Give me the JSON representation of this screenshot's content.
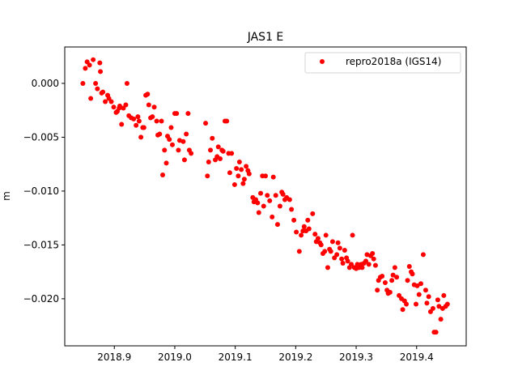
{
  "chart_data": {
    "type": "scatter",
    "title": "JAS1 E",
    "xlabel": "",
    "ylabel": "m",
    "xlim": [
      2018.818,
      2019.482
    ],
    "ylim": [
      -0.02437,
      0.00338
    ],
    "xticks": [
      2018.9,
      2019.0,
      2019.1,
      2019.2,
      2019.3,
      2019.4
    ],
    "xtick_labels": [
      "2018.9",
      "2019.0",
      "2019.1",
      "2019.2",
      "2019.3",
      "2019.4"
    ],
    "yticks": [
      0.0,
      -0.005,
      -0.01,
      -0.015,
      -0.02
    ],
    "ytick_labels": [
      "0.000",
      "−0.005",
      "−0.010",
      "−0.015",
      "−0.020"
    ],
    "grid": false,
    "legend_placement": "top-right",
    "series": [
      {
        "name": "repro2018a (IGS14)",
        "color": "#ff0000",
        "marker": "circle",
        "points": [
          [
            2018.848,
            0.0
          ],
          [
            2018.852,
            0.0014
          ],
          [
            2018.855,
            0.002
          ],
          [
            2018.859,
            0.0017
          ],
          [
            2018.861,
            -0.0014
          ],
          [
            2018.865,
            0.0022
          ],
          [
            2018.869,
            0.0
          ],
          [
            2018.872,
            -0.0005
          ],
          [
            2018.876,
            0.0019
          ],
          [
            2018.877,
            0.0011
          ],
          [
            2018.879,
            -0.0009
          ],
          [
            2018.881,
            -0.0008
          ],
          [
            2018.885,
            -0.0017
          ],
          [
            2018.889,
            -0.0011
          ],
          [
            2018.891,
            -0.0014
          ],
          [
            2018.895,
            -0.0017
          ],
          [
            2018.899,
            -0.0022
          ],
          [
            2018.903,
            -0.0027
          ],
          [
            2018.905,
            -0.0026
          ],
          [
            2018.908,
            -0.0023
          ],
          [
            2018.909,
            -0.0021
          ],
          [
            2018.912,
            -0.0038
          ],
          [
            2018.915,
            -0.0023
          ],
          [
            2018.919,
            -0.002
          ],
          [
            2018.921,
            0.0
          ],
          [
            2018.924,
            -0.003
          ],
          [
            2018.928,
            -0.0032
          ],
          [
            2018.932,
            -0.0033
          ],
          [
            2018.936,
            -0.0039
          ],
          [
            2018.939,
            -0.0031
          ],
          [
            2018.941,
            -0.0035
          ],
          [
            2018.944,
            -0.005
          ],
          [
            2018.947,
            -0.0041
          ],
          [
            2018.949,
            -0.0041
          ],
          [
            2018.952,
            -0.0011
          ],
          [
            2018.955,
            -0.001
          ],
          [
            2018.957,
            -0.002
          ],
          [
            2018.96,
            -0.0032
          ],
          [
            2018.963,
            -0.0031
          ],
          [
            2018.966,
            -0.0022
          ],
          [
            2018.97,
            -0.0035
          ],
          [
            2018.972,
            -0.0048
          ],
          [
            2018.975,
            -0.0047
          ],
          [
            2018.978,
            -0.0035
          ],
          [
            2018.98,
            -0.0085
          ],
          [
            2018.983,
            -0.0062
          ],
          [
            2018.986,
            -0.0074
          ],
          [
            2018.988,
            -0.0049
          ],
          [
            2018.991,
            -0.0052
          ],
          [
            2018.994,
            -0.0041
          ],
          [
            2018.996,
            -0.0057
          ],
          [
            2019.0,
            -0.0028
          ],
          [
            2019.003,
            -0.0028
          ],
          [
            2019.006,
            -0.0062
          ],
          [
            2019.008,
            -0.0053
          ],
          [
            2019.014,
            -0.0054
          ],
          [
            2019.016,
            -0.0071
          ],
          [
            2019.019,
            -0.0047
          ],
          [
            2019.022,
            -0.0028
          ],
          [
            2019.024,
            -0.0062
          ],
          [
            2019.027,
            -0.0065
          ],
          [
            2019.051,
            -0.0037
          ],
          [
            2019.054,
            -0.0086
          ],
          [
            2019.056,
            -0.0073
          ],
          [
            2019.059,
            -0.0062
          ],
          [
            2019.062,
            -0.0051
          ],
          [
            2019.067,
            -0.0071
          ],
          [
            2019.07,
            -0.0068
          ],
          [
            2019.072,
            -0.0059
          ],
          [
            2019.075,
            -0.007
          ],
          [
            2019.078,
            -0.0062
          ],
          [
            2019.08,
            -0.0063
          ],
          [
            2019.083,
            -0.0035
          ],
          [
            2019.086,
            -0.0035
          ],
          [
            2019.089,
            -0.0065
          ],
          [
            2019.091,
            -0.0083
          ],
          [
            2019.094,
            -0.0065
          ],
          [
            2019.099,
            -0.0094
          ],
          [
            2019.102,
            -0.0079
          ],
          [
            2019.105,
            -0.0086
          ],
          [
            2019.107,
            -0.0073
          ],
          [
            2019.11,
            -0.008
          ],
          [
            2019.113,
            -0.0093
          ],
          [
            2019.115,
            -0.0089
          ],
          [
            2019.118,
            -0.0077
          ],
          [
            2019.121,
            -0.0081
          ],
          [
            2019.123,
            -0.0084
          ],
          [
            2019.129,
            -0.0106
          ],
          [
            2019.131,
            -0.011
          ],
          [
            2019.134,
            -0.0108
          ],
          [
            2019.137,
            -0.0111
          ],
          [
            2019.139,
            -0.012
          ],
          [
            2019.142,
            -0.0102
          ],
          [
            2019.145,
            -0.0086
          ],
          [
            2019.147,
            -0.0114
          ],
          [
            2019.15,
            -0.0086
          ],
          [
            2019.153,
            -0.0104
          ],
          [
            2019.157,
            -0.0109
          ],
          [
            2019.161,
            -0.0124
          ],
          [
            2019.163,
            -0.0087
          ],
          [
            2019.167,
            -0.0104
          ],
          [
            2019.17,
            -0.0131
          ],
          [
            2019.174,
            -0.0114
          ],
          [
            2019.177,
            -0.0101
          ],
          [
            2019.179,
            -0.0103
          ],
          [
            2019.182,
            -0.0108
          ],
          [
            2019.185,
            -0.0106
          ],
          [
            2019.19,
            -0.0108
          ],
          [
            2019.193,
            -0.0117
          ],
          [
            2019.197,
            -0.0127
          ],
          [
            2019.201,
            -0.0138
          ],
          [
            2019.206,
            -0.0156
          ],
          [
            2019.209,
            -0.0141
          ],
          [
            2019.212,
            -0.0137
          ],
          [
            2019.214,
            -0.0133
          ],
          [
            2019.217,
            -0.0137
          ],
          [
            2019.22,
            -0.0127
          ],
          [
            2019.222,
            -0.0135
          ],
          [
            2019.228,
            -0.0121
          ],
          [
            2019.232,
            -0.014
          ],
          [
            2019.234,
            -0.0147
          ],
          [
            2019.237,
            -0.0144
          ],
          [
            2019.24,
            -0.0148
          ],
          [
            2019.242,
            -0.015
          ],
          [
            2019.245,
            -0.0158
          ],
          [
            2019.248,
            -0.0156
          ],
          [
            2019.25,
            -0.0141
          ],
          [
            2019.253,
            -0.0171
          ],
          [
            2019.256,
            -0.0154
          ],
          [
            2019.258,
            -0.0156
          ],
          [
            2019.261,
            -0.0147
          ],
          [
            2019.264,
            -0.0162
          ],
          [
            2019.268,
            -0.0159
          ],
          [
            2019.27,
            -0.0148
          ],
          [
            2019.273,
            -0.0153
          ],
          [
            2019.276,
            -0.0163
          ],
          [
            2019.278,
            -0.0167
          ],
          [
            2019.281,
            -0.0155
          ],
          [
            2019.284,
            -0.0162
          ],
          [
            2019.286,
            -0.0165
          ],
          [
            2019.289,
            -0.0171
          ],
          [
            2019.292,
            -0.0168
          ],
          [
            2019.294,
            -0.0141
          ],
          [
            2019.297,
            -0.0171
          ],
          [
            2019.3,
            -0.0172
          ],
          [
            2019.302,
            -0.0168
          ],
          [
            2019.305,
            -0.0171
          ],
          [
            2019.308,
            -0.0168
          ],
          [
            2019.31,
            -0.0171
          ],
          [
            2019.313,
            -0.0167
          ],
          [
            2019.316,
            -0.0165
          ],
          [
            2019.318,
            -0.0159
          ],
          [
            2019.321,
            -0.0168
          ],
          [
            2019.324,
            -0.016
          ],
          [
            2019.327,
            -0.0158
          ],
          [
            2019.329,
            -0.0163
          ],
          [
            2019.332,
            -0.0169
          ],
          [
            2019.335,
            -0.0192
          ],
          [
            2019.337,
            -0.0183
          ],
          [
            2019.34,
            -0.018
          ],
          [
            2019.343,
            -0.0179
          ],
          [
            2019.348,
            -0.0185
          ],
          [
            2019.351,
            -0.0192
          ],
          [
            2019.353,
            -0.0195
          ],
          [
            2019.356,
            -0.0194
          ],
          [
            2019.359,
            -0.0183
          ],
          [
            2019.361,
            -0.0178
          ],
          [
            2019.364,
            -0.0171
          ],
          [
            2019.367,
            -0.018
          ],
          [
            2019.371,
            -0.0197
          ],
          [
            2019.375,
            -0.02
          ],
          [
            2019.377,
            -0.021
          ],
          [
            2019.38,
            -0.0202
          ],
          [
            2019.383,
            -0.0205
          ],
          [
            2019.385,
            -0.0183
          ],
          [
            2019.388,
            -0.017
          ],
          [
            2019.391,
            -0.0175
          ],
          [
            2019.393,
            -0.0177
          ],
          [
            2019.396,
            -0.0187
          ],
          [
            2019.399,
            -0.0205
          ],
          [
            2019.401,
            -0.0188
          ],
          [
            2019.404,
            -0.0196
          ],
          [
            2019.407,
            -0.0186
          ],
          [
            2019.411,
            -0.0159
          ],
          [
            2019.415,
            -0.0192
          ],
          [
            2019.417,
            -0.0204
          ],
          [
            2019.42,
            -0.0198
          ],
          [
            2019.423,
            -0.0212
          ],
          [
            2019.427,
            -0.0209
          ],
          [
            2019.429,
            -0.0231
          ],
          [
            2019.432,
            -0.0231
          ],
          [
            2019.435,
            -0.0201
          ],
          [
            2019.437,
            -0.0207
          ],
          [
            2019.44,
            -0.0219
          ],
          [
            2019.443,
            -0.0209
          ],
          [
            2019.445,
            -0.0197
          ],
          [
            2019.448,
            -0.0207
          ],
          [
            2019.451,
            -0.0205
          ]
        ]
      }
    ]
  }
}
